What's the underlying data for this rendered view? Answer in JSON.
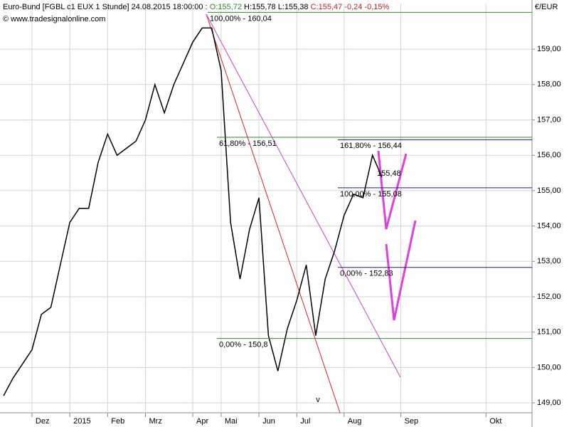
{
  "chart_data": {
    "type": "line",
    "header": {
      "symbol": "Euro-Bund [FGBL c1 EUX  1 Stunde] 24.08.2015 18:00:00 :",
      "open": "O:155,72",
      "high_low": "H:155,78 L:155,38",
      "close": "C:155,47 -0,24 -0,15%"
    },
    "source": "© www.tradesignalonline.com",
    "currency": "€/EUR",
    "marker": "v",
    "categories": [
      null,
      null,
      null,
      "Dez",
      null,
      null,
      null,
      "2015",
      null,
      null,
      null,
      "Feb",
      null,
      null,
      null,
      "Mrz",
      null,
      null,
      null,
      null,
      "Apr",
      null,
      null,
      "Mai",
      null,
      null,
      null,
      "Jun",
      null,
      null,
      null,
      "Jul",
      null,
      null,
      null,
      null,
      "Aug",
      null,
      null,
      null,
      null,
      null,
      "Sep",
      null,
      null,
      null,
      null,
      null,
      null,
      null,
      null,
      "Okt",
      null,
      null,
      null,
      null
    ],
    "series": [
      {
        "color": "#000000",
        "values": [
          149.2,
          149.7,
          150.1,
          150.5,
          151.5,
          151.7,
          152.9,
          154.1,
          154.5,
          154.5,
          155.8,
          156.6,
          156.0,
          156.2,
          156.4,
          157.0,
          158.0,
          157.2,
          158.0,
          158.6,
          159.2,
          159.6,
          159.6,
          158.4,
          154.1,
          152.5,
          153.9,
          154.8,
          150.9,
          149.9,
          151.1,
          151.9,
          152.9,
          150.9,
          152.5,
          153.3,
          154.3,
          154.9,
          154.8,
          156.0,
          155.38,
          null,
          null,
          null,
          null,
          null,
          null,
          null,
          null,
          null,
          null,
          null,
          null,
          null,
          null,
          null
        ]
      }
    ],
    "ylim": [
      148.76,
      160.29
    ],
    "yticks": [
      {
        "value": 149,
        "label": "149,00"
      },
      {
        "value": 150,
        "label": "150,00"
      },
      {
        "value": 151,
        "label": "151,00"
      },
      {
        "value": 152,
        "label": "152,00"
      },
      {
        "value": 153,
        "label": "153,00"
      },
      {
        "value": 154,
        "label": "154,00"
      },
      {
        "value": 155,
        "label": "155,00"
      },
      {
        "value": 156,
        "label": "156,00"
      },
      {
        "value": 157,
        "label": "157,00"
      },
      {
        "value": 158,
        "label": "158,00"
      },
      {
        "value": 159,
        "label": "159,00"
      }
    ],
    "grid": true,
    "fib_green": {
      "color": "#2e8b2e",
      "levels": [
        {
          "value": 160.04,
          "label": "100,00% - 160,04"
        },
        {
          "value": 156.51,
          "label": "61,80% - 156,51"
        },
        {
          "value": 150.82,
          "label": "0,00% - 150,8"
        }
      ]
    },
    "fib_blue": {
      "color": "#1a1aa0",
      "levels": [
        {
          "value": 156.44,
          "label": "161,80% - 156,44"
        },
        {
          "value": 155.08,
          "label": "100,00% - 155,08"
        },
        {
          "value": 152.83,
          "label": "0,00% - 152,83"
        }
      ]
    },
    "target": {
      "value": 155.48,
      "label": "155,48",
      "color": "#e040e0"
    }
  }
}
